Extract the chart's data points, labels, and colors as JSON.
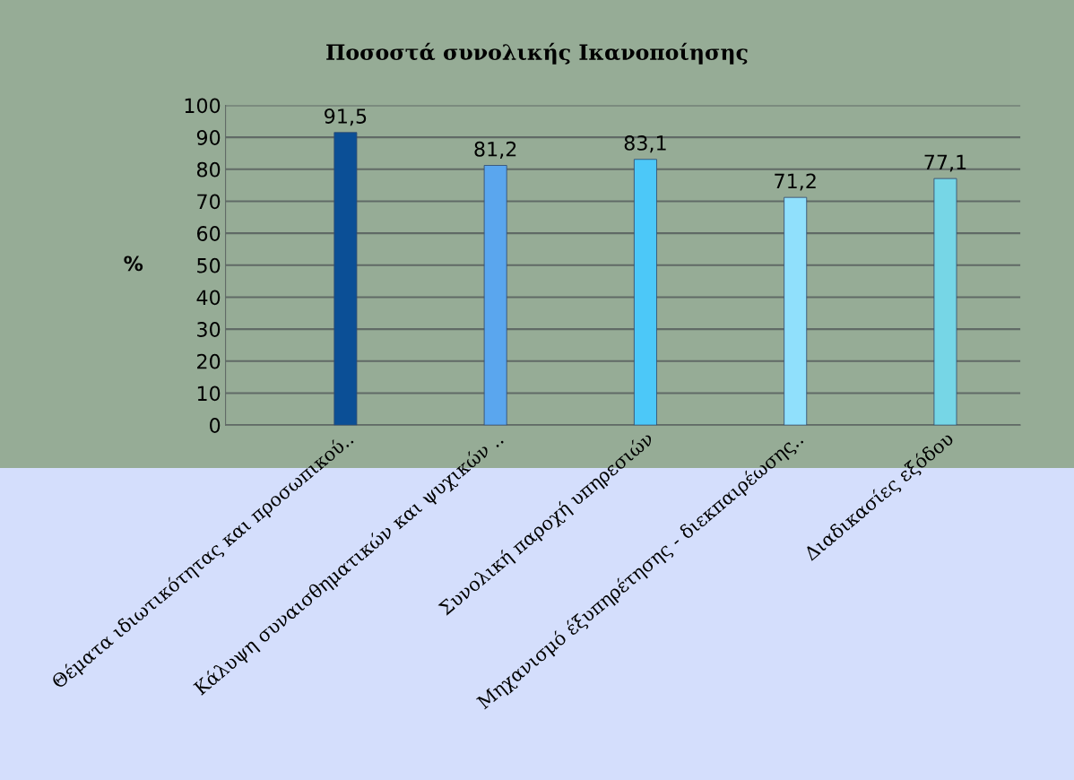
{
  "chart_data": {
    "type": "bar",
    "title": "Ποσοστά συνολικής Ικανοποίησης",
    "ylabel": "%",
    "categories": [
      "Θέματα ιδιωτικότητας και προσωπικού..",
      "Κάλυψη συναισθηματικών και ψυχικών ..",
      "Συνολική παροχή υπηρεσιών",
      "Μηχανισμό έξυπηρέτησης - διεκπαιρέωσης..",
      "Διαδικασίες εξόδου"
    ],
    "values": [
      91.5,
      81.2,
      83.1,
      71.2,
      77.1
    ],
    "colors": [
      "#0b4f96",
      "#5aa6ee",
      "#4cc8f8",
      "#90e0fc",
      "#76d6e6"
    ],
    "value_labels": [
      "91,5",
      "81,2",
      "83,1",
      "71,2",
      "77,1"
    ],
    "ylim": [
      0,
      100
    ],
    "yticks": [
      0,
      10,
      20,
      30,
      40,
      50,
      60,
      70,
      80,
      90,
      100
    ],
    "grid": "y",
    "legend": false
  }
}
